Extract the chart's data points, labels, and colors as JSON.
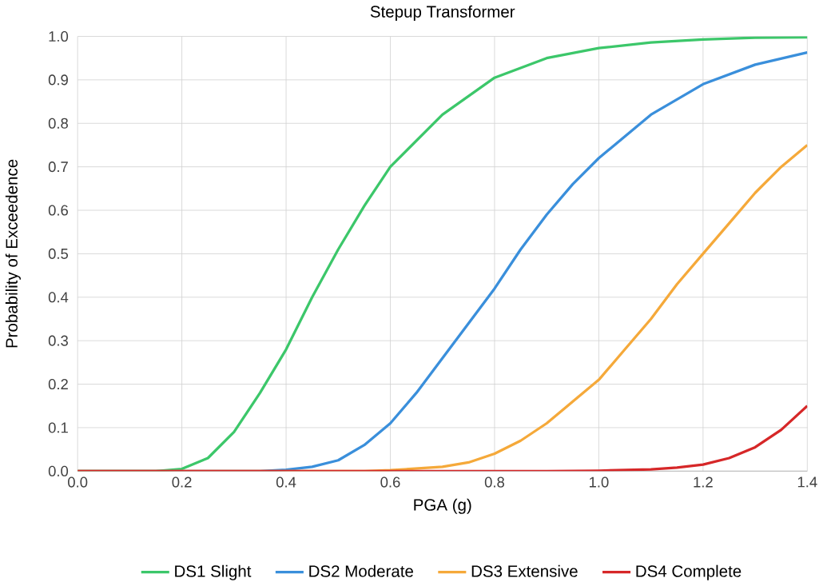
{
  "chart_data": {
    "type": "line",
    "title": "Stepup Transformer",
    "xlabel": "PGA (g)",
    "ylabel": "Probability of Exceedence",
    "xlim": [
      0,
      1.4
    ],
    "ylim": [
      0,
      1.0
    ],
    "xticks": [
      {
        "value": 0,
        "label": "0.0"
      },
      {
        "value": 0.2,
        "label": "0.2"
      },
      {
        "value": 0.4,
        "label": "0.4"
      },
      {
        "value": 0.6,
        "label": "0.6"
      },
      {
        "value": 0.8,
        "label": "0.8"
      },
      {
        "value": 1.0,
        "label": "1.0"
      },
      {
        "value": 1.2,
        "label": "1.2"
      },
      {
        "value": 1.4,
        "label": "1.4"
      }
    ],
    "yticks": [
      {
        "value": 0,
        "label": "0.0"
      },
      {
        "value": 0.1,
        "label": "0.1"
      },
      {
        "value": 0.2,
        "label": "0.2"
      },
      {
        "value": 0.3,
        "label": "0.3"
      },
      {
        "value": 0.4,
        "label": "0.4"
      },
      {
        "value": 0.5,
        "label": "0.5"
      },
      {
        "value": 0.6,
        "label": "0.6"
      },
      {
        "value": 0.7,
        "label": "0.7"
      },
      {
        "value": 0.8,
        "label": "0.8"
      },
      {
        "value": 0.9,
        "label": "0.9"
      },
      {
        "value": 1.0,
        "label": "1.0"
      }
    ],
    "grid": true,
    "legend": "bottom",
    "marker": "none",
    "line_style": "solid",
    "series": [
      {
        "name": "DS1 Slight",
        "color": "#3cc76a",
        "x": [
          0,
          0.15,
          0.2,
          0.25,
          0.3,
          0.35,
          0.4,
          0.45,
          0.5,
          0.55,
          0.6,
          0.7,
          0.8,
          0.9,
          1.0,
          1.1,
          1.2,
          1.3,
          1.4
        ],
        "values": [
          0,
          0.0,
          0.005,
          0.03,
          0.09,
          0.18,
          0.28,
          0.4,
          0.51,
          0.61,
          0.7,
          0.82,
          0.905,
          0.95,
          0.973,
          0.986,
          0.993,
          0.997,
          0.998
        ]
      },
      {
        "name": "DS2 Moderate",
        "color": "#3a8fdb",
        "x": [
          0,
          0.35,
          0.4,
          0.45,
          0.5,
          0.55,
          0.6,
          0.65,
          0.7,
          0.75,
          0.8,
          0.85,
          0.9,
          0.95,
          1.0,
          1.1,
          1.2,
          1.3,
          1.4
        ],
        "values": [
          0,
          0.0,
          0.003,
          0.01,
          0.025,
          0.06,
          0.11,
          0.18,
          0.26,
          0.34,
          0.42,
          0.51,
          0.59,
          0.66,
          0.72,
          0.82,
          0.89,
          0.935,
          0.963
        ]
      },
      {
        "name": "DS3 Extensive",
        "color": "#f5a93a",
        "x": [
          0,
          0.55,
          0.6,
          0.7,
          0.75,
          0.8,
          0.85,
          0.9,
          0.95,
          1.0,
          1.05,
          1.1,
          1.15,
          1.2,
          1.25,
          1.3,
          1.35,
          1.4
        ],
        "values": [
          0,
          0.0,
          0.002,
          0.01,
          0.02,
          0.04,
          0.07,
          0.11,
          0.16,
          0.21,
          0.28,
          0.35,
          0.43,
          0.5,
          0.57,
          0.64,
          0.7,
          0.75
        ]
      },
      {
        "name": "DS4 Complete",
        "color": "#d62728",
        "x": [
          0,
          0.9,
          1.0,
          1.1,
          1.15,
          1.2,
          1.25,
          1.3,
          1.35,
          1.4
        ],
        "values": [
          0,
          0.0,
          0.001,
          0.004,
          0.008,
          0.015,
          0.03,
          0.055,
          0.095,
          0.15
        ]
      }
    ]
  }
}
